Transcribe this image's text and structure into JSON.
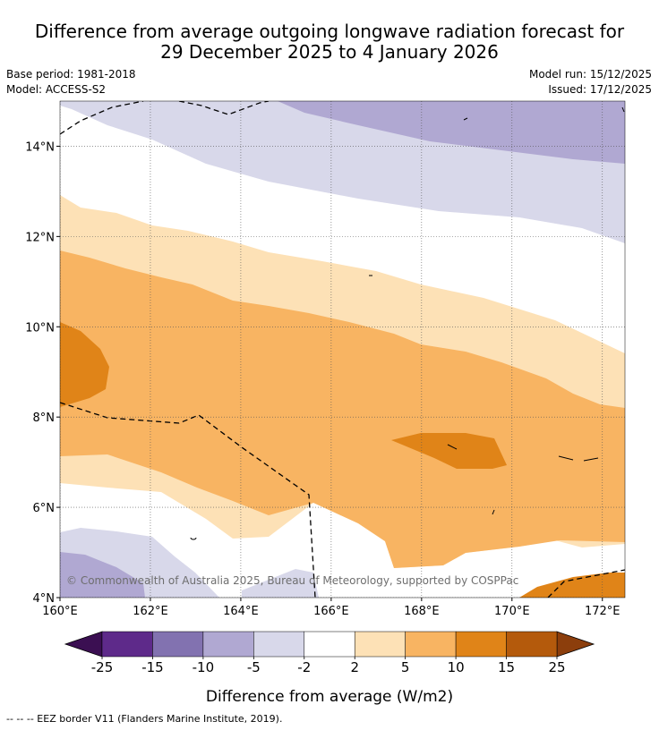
{
  "title_line1": "Difference from average outgoing longwave radiation forecast for",
  "title_line2": "29 December 2025 to 4 January 2026",
  "base_period": "Base period: 1981-2018",
  "model": "Model: ACCESS-S2",
  "model_run": "Model run: 15/12/2025",
  "issued": "Issued: 17/12/2025",
  "copyright": "© Commonwealth of Australia 2025, Bureau of Meteorology, supported by COSPPac",
  "colorbar_label": "Difference from average (W/m2)",
  "footer": "--  --  -- EEZ border V11 (Flanders Marine Institute, 2019).",
  "map_extent": {
    "lon": [
      160,
      172.5
    ],
    "lat": [
      4,
      15
    ]
  },
  "lon_ticks": [
    {
      "value": 160,
      "label": "160°E"
    },
    {
      "value": 162,
      "label": "162°E"
    },
    {
      "value": 164,
      "label": "164°E"
    },
    {
      "value": 166,
      "label": "166°E"
    },
    {
      "value": 168,
      "label": "168°E"
    },
    {
      "value": 170,
      "label": "170°E"
    },
    {
      "value": 172,
      "label": "172°E"
    }
  ],
  "lat_ticks": [
    {
      "value": 4,
      "label": "4°N"
    },
    {
      "value": 6,
      "label": "6°N"
    },
    {
      "value": 8,
      "label": "8°N"
    },
    {
      "value": 10,
      "label": "10°N"
    },
    {
      "value": 12,
      "label": "12°N"
    },
    {
      "value": 14,
      "label": "14°N"
    }
  ],
  "colorbar": {
    "labels": [
      "-25",
      "-15",
      "-10",
      "-5",
      "-2",
      "2",
      "5",
      "10",
      "15",
      "25"
    ],
    "under_color": "#3b0f52",
    "over_color": "#8c3e0c",
    "colors": [
      "#5e2a8a",
      "#8272b0",
      "#b0a8d2",
      "#d8d8ea",
      "#ffffff",
      "#fde1b6",
      "#f8b462",
      "#e08418",
      "#b45a0c"
    ]
  },
  "colors": {
    "dark_orange": "#e08418",
    "mid_orange": "#f8b462",
    "light_orange": "#fde1b6",
    "light_purple": "#d8d8ea",
    "mid_purple": "#b0a8d2",
    "white": "#ffffff"
  }
}
